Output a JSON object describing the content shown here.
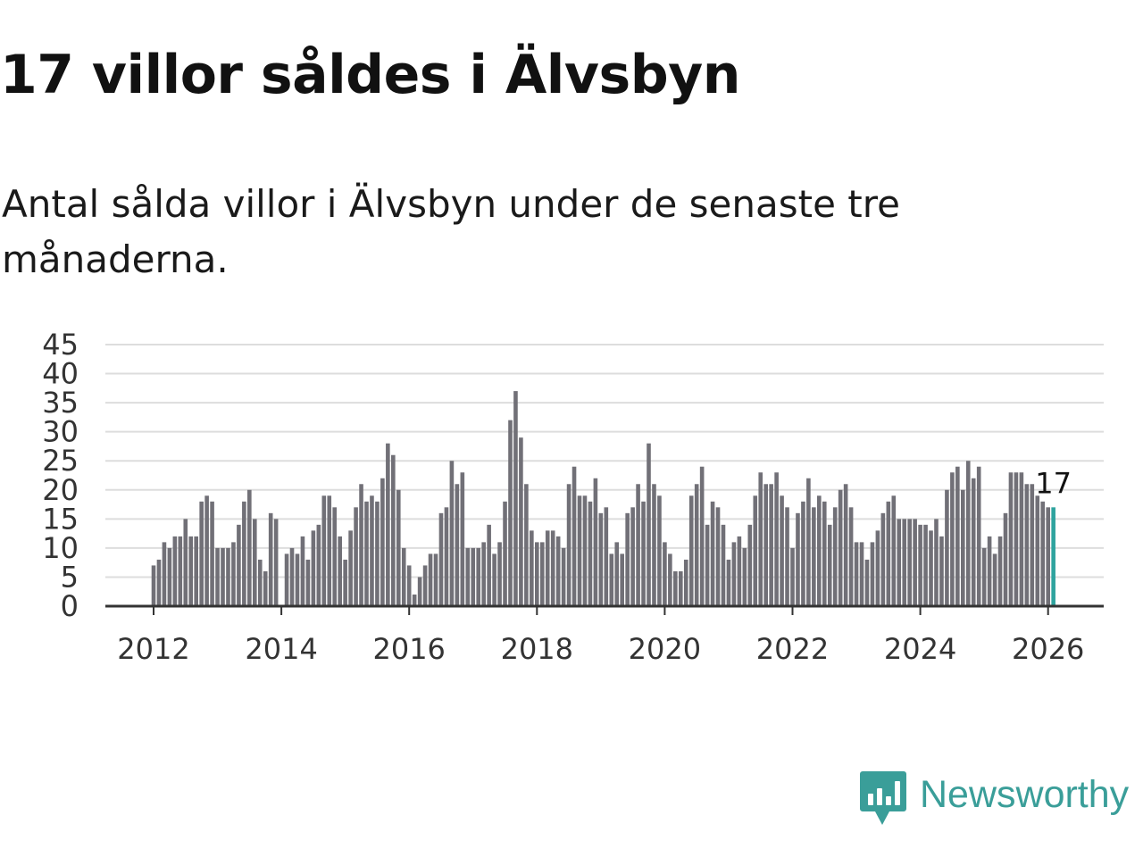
{
  "title": "17 villor såldes i Älvsbyn",
  "subtitle": "Antal sålda villor i Älvsbyn under de senaste tre månaderna.",
  "brand": {
    "name": "Newsworthy",
    "icon": "newsworthy-logo-icon",
    "color": "#3a9e99"
  },
  "colors": {
    "bar": "#717077",
    "highlight": "#2ea39e",
    "grid": "#dddddd",
    "axis": "#333333",
    "text": "#333333"
  },
  "chart_data": {
    "type": "bar",
    "title": "17 villor såldes i Älvsbyn",
    "xlabel": "",
    "ylabel": "",
    "ylim": [
      0,
      45
    ],
    "yticks": [
      "0",
      "5",
      "10",
      "15",
      "20",
      "25",
      "30",
      "35",
      "40",
      "45"
    ],
    "xticks": [
      "2012",
      "2014",
      "2016",
      "2018",
      "2020",
      "2022",
      "2024",
      "2026"
    ],
    "grid": true,
    "start": "2012-01",
    "end": "2026-02",
    "highlight_label": "17",
    "values": [
      7,
      8,
      11,
      10,
      12,
      12,
      15,
      12,
      12,
      18,
      19,
      18,
      10,
      10,
      10,
      11,
      14,
      18,
      20,
      15,
      8,
      6,
      16,
      15,
      0,
      9,
      10,
      9,
      12,
      8,
      13,
      14,
      19,
      19,
      17,
      12,
      8,
      13,
      17,
      21,
      18,
      19,
      18,
      22,
      28,
      26,
      20,
      10,
      7,
      2,
      5,
      7,
      9,
      9,
      16,
      17,
      25,
      21,
      23,
      10,
      10,
      10,
      11,
      14,
      9,
      11,
      18,
      32,
      37,
      29,
      21,
      13,
      11,
      11,
      13,
      13,
      12,
      10,
      21,
      24,
      19,
      19,
      18,
      22,
      16,
      17,
      9,
      11,
      9,
      16,
      17,
      21,
      18,
      28,
      21,
      19,
      11,
      9,
      6,
      6,
      8,
      19,
      21,
      24,
      14,
      18,
      17,
      14,
      8,
      11,
      12,
      10,
      14,
      19,
      23,
      21,
      21,
      23,
      19,
      17,
      10,
      16,
      18,
      22,
      17,
      19,
      18,
      14,
      17,
      20,
      21,
      17,
      11,
      11,
      8,
      11,
      13,
      16,
      18,
      19,
      15,
      15,
      15,
      15,
      14,
      14,
      13,
      15,
      12,
      20,
      23,
      24,
      20,
      25,
      22,
      24,
      10,
      12,
      9,
      12,
      16,
      23,
      23,
      23,
      21,
      21,
      19,
      18,
      17,
      17
    ]
  }
}
